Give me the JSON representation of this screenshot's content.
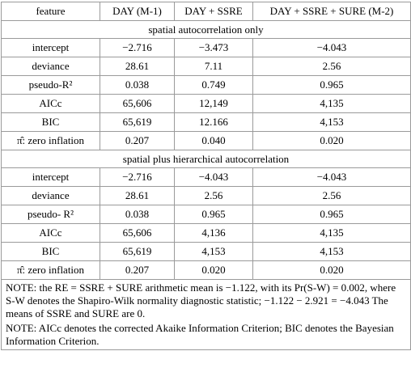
{
  "columns": [
    "feature",
    "DAY (M-1)",
    "DAY + SSRE",
    "DAY + SSRE + SURE (M-2)"
  ],
  "sections": [
    {
      "title": "spatial autocorrelation only",
      "rows": [
        {
          "feature": "intercept",
          "m1": "−2.716",
          "ssre": "−3.473",
          "m2": "−4.043"
        },
        {
          "feature": "deviance",
          "m1": "28.61",
          "ssre": "7.11",
          "m2": "2.56"
        },
        {
          "feature": "pseudo-R²",
          "m1": "0.038",
          "ssre": "0.749",
          "m2": "0.965"
        },
        {
          "feature": "AICc",
          "m1": "65,606",
          "ssre": "12,149",
          "m2": "4,135"
        },
        {
          "feature": "BIC",
          "m1": "65,619",
          "ssre": "12.166",
          "m2": "4,153"
        },
        {
          "feature": "π̂: zero inflation",
          "m1": "0.207",
          "ssre": "0.040",
          "m2": "0.020"
        }
      ]
    },
    {
      "title": "spatial plus hierarchical autocorrelation",
      "rows": [
        {
          "feature": "intercept",
          "m1": "−2.716",
          "ssre": "−4.043",
          "m2": "−4.043"
        },
        {
          "feature": "deviance",
          "m1": "28.61",
          "ssre": "2.56",
          "m2": "2.56"
        },
        {
          "feature": "pseudo- R²",
          "m1": "0.038",
          "ssre": "0.965",
          "m2": "0.965"
        },
        {
          "feature": "AICc",
          "m1": "65,606",
          "ssre": "4,136",
          "m2": "4,135"
        },
        {
          "feature": "BIC",
          "m1": "65,619",
          "ssre": "4,153",
          "m2": "4,153"
        },
        {
          "feature": "π̂: zero inflation",
          "m1": "0.207",
          "ssre": "0.020",
          "m2": "0.020"
        }
      ]
    }
  ],
  "notes": [
    "NOTE: the RE = SSRE + SURE arithmetic mean is −1.122, with its Pr(S-W) = 0.002, where S-W denotes the Shapiro-Wilk normality diagnostic statistic; −1.122 − 2.921 = −4.043 The means of SSRE and SURE are 0.",
    "NOTE: AICc denotes the corrected Akaike Information Criterion; BIC denotes the Bayesian Information Criterion."
  ]
}
